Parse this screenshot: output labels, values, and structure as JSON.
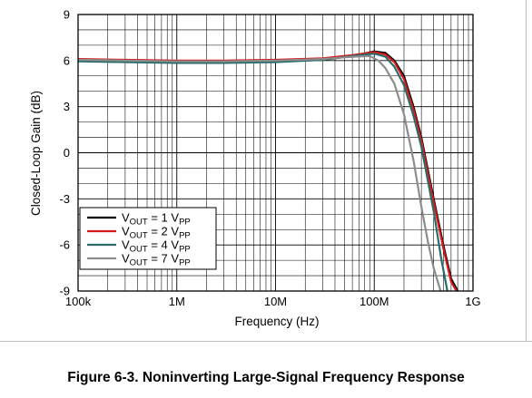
{
  "chart_data": {
    "type": "line",
    "xlabel": "Frequency (Hz)",
    "ylabel": "Closed-Loop Gain (dB)",
    "x_scale": "log",
    "xlim": [
      100000,
      1000000000
    ],
    "ylim": [
      -9,
      9
    ],
    "x_ticks": [
      100000,
      1000000,
      10000000,
      100000000,
      1000000000
    ],
    "x_tick_labels": [
      "100k",
      "1M",
      "10M",
      "100M",
      "1G"
    ],
    "y_ticks": [
      9,
      6,
      3,
      0,
      -3,
      -6,
      -9
    ],
    "y_tick_labels": [
      "9",
      "6",
      "3",
      "0",
      "-3",
      "-6",
      "-9"
    ],
    "grid": true,
    "legend_position": "bottom-left",
    "series": [
      {
        "name": "VOUT = 1 VPP",
        "label_parts": [
          "V",
          "OUT",
          " = 1 V",
          "PP"
        ],
        "color": "#000000",
        "x": [
          100000,
          300000,
          1000000,
          3000000,
          10000000,
          30000000,
          60000000,
          100000000,
          130000000,
          160000000,
          200000000,
          250000000,
          300000000,
          400000000,
          500000000,
          600000000,
          700000000
        ],
        "y": [
          6.0,
          5.95,
          5.9,
          5.9,
          5.95,
          6.05,
          6.3,
          6.6,
          6.5,
          6.0,
          5.0,
          3.0,
          1.0,
          -3.0,
          -6.0,
          -8.2,
          -9.0
        ]
      },
      {
        "name": "VOUT = 2 VPP",
        "label_parts": [
          "V",
          "OUT",
          " = 2 V",
          "PP"
        ],
        "color": "#d7191c",
        "x": [
          100000,
          300000,
          1000000,
          3000000,
          10000000,
          30000000,
          60000000,
          100000000,
          130000000,
          160000000,
          200000000,
          250000000,
          300000000,
          400000000,
          500000000,
          600000000,
          680000000
        ],
        "y": [
          6.1,
          6.05,
          6.0,
          6.0,
          6.05,
          6.15,
          6.35,
          6.55,
          6.4,
          5.9,
          4.8,
          2.8,
          0.8,
          -3.2,
          -6.2,
          -8.4,
          -9.0
        ]
      },
      {
        "name": "VOUT = 4 VPP",
        "label_parts": [
          "V",
          "OUT",
          " = 4 V",
          "PP"
        ],
        "color": "#2b6c6a",
        "x": [
          100000,
          300000,
          1000000,
          3000000,
          10000000,
          30000000,
          60000000,
          100000000,
          130000000,
          160000000,
          200000000,
          250000000,
          300000000,
          400000000,
          480000000,
          550000000
        ],
        "y": [
          5.95,
          5.9,
          5.85,
          5.85,
          5.9,
          6.05,
          6.3,
          6.45,
          6.25,
          5.6,
          4.4,
          2.4,
          0.4,
          -3.8,
          -7.0,
          -9.0
        ]
      },
      {
        "name": "VOUT = 7 VPP",
        "label_parts": [
          "V",
          "OUT",
          " = 7 V",
          "PP"
        ],
        "color": "#8c8c8c",
        "x": [
          100000,
          300000,
          1000000,
          3000000,
          10000000,
          30000000,
          60000000,
          90000000,
          110000000,
          130000000,
          160000000,
          200000000,
          250000000,
          300000000,
          350000000,
          400000000,
          470000000
        ],
        "y": [
          6.05,
          6.0,
          5.95,
          5.95,
          6.0,
          6.1,
          6.25,
          6.3,
          6.0,
          5.5,
          4.5,
          2.5,
          -0.5,
          -3.5,
          -5.8,
          -7.5,
          -9.0
        ]
      }
    ]
  },
  "caption": "Figure 6-3. Noninverting Large-Signal Frequency Response"
}
